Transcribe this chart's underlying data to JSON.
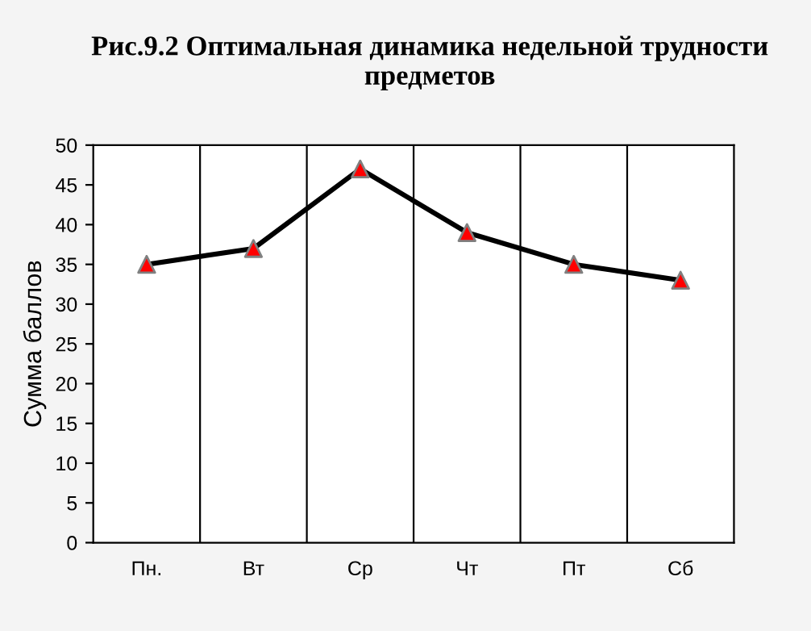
{
  "chart_data": {
    "type": "line",
    "title": "Рис.9.2 Оптимальная динамика недельной трудности предметов",
    "ylabel": "Сумма баллов",
    "categories": [
      "Пн.",
      "Вт",
      "Ср",
      "Чт",
      "Пт",
      "Сб"
    ],
    "series": [
      {
        "color": "#000000",
        "colors": [
          "#ff0000",
          "#ff0000",
          "#ff0000",
          "#ff0000",
          "#ff0000",
          "#ff0000"
        ],
        "values": [
          35,
          37,
          47,
          39,
          35,
          33
        ]
      }
    ],
    "marker": "triangle",
    "line_style": "solid",
    "ylim": [
      0,
      50
    ],
    "yticks": [
      0,
      5,
      10,
      15,
      20,
      25,
      30,
      35,
      40,
      45,
      50
    ],
    "grid": "x",
    "legend": false
  }
}
